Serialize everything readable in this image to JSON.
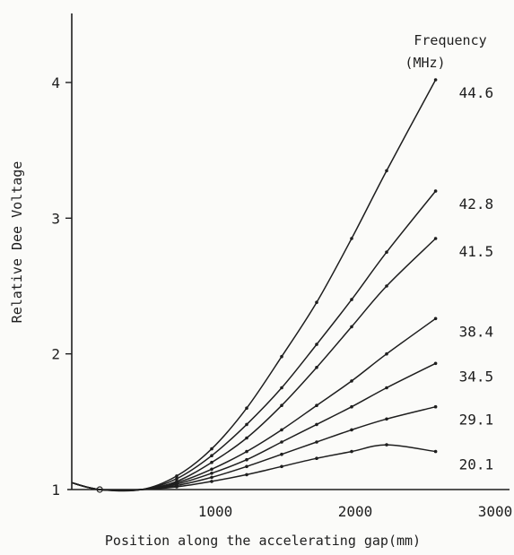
{
  "chart_data": {
    "type": "line",
    "title": "",
    "xlabel": "Position along the accelerating gap(mm)",
    "ylabel": "Relative Dee Voltage",
    "legend_title": [
      "Frequency",
      "(MHz)"
    ],
    "xlim": [
      0,
      3000
    ],
    "ylim": [
      1,
      4.5
    ],
    "xticks": [
      1000,
      2000,
      3000
    ],
    "yticks": [
      1,
      2,
      3,
      4
    ],
    "grid": false,
    "legend": "right",
    "series": [
      {
        "name": "44.6",
        "x": [
          0,
          200,
          500,
          750,
          1000,
          1250,
          1500,
          1750,
          2000,
          2250,
          2600
        ],
        "y": [
          1.05,
          1.0,
          1.0,
          1.1,
          1.3,
          1.6,
          1.98,
          2.38,
          2.85,
          3.35,
          4.02
        ]
      },
      {
        "name": "42.8",
        "x": [
          0,
          200,
          500,
          750,
          1000,
          1250,
          1500,
          1750,
          2000,
          2250,
          2600
        ],
        "y": [
          1.05,
          1.0,
          1.0,
          1.08,
          1.25,
          1.48,
          1.75,
          2.07,
          2.4,
          2.75,
          3.2
        ]
      },
      {
        "name": "41.5",
        "x": [
          0,
          200,
          500,
          750,
          1000,
          1250,
          1500,
          1750,
          2000,
          2250,
          2600
        ],
        "y": [
          1.05,
          1.0,
          1.0,
          1.06,
          1.2,
          1.38,
          1.62,
          1.9,
          2.2,
          2.5,
          2.85
        ]
      },
      {
        "name": "38.4",
        "x": [
          0,
          200,
          500,
          750,
          1000,
          1250,
          1500,
          1750,
          2000,
          2250,
          2600
        ],
        "y": [
          1.05,
          1.0,
          1.0,
          1.05,
          1.15,
          1.28,
          1.44,
          1.62,
          1.8,
          2.0,
          2.26
        ]
      },
      {
        "name": "34.5",
        "x": [
          0,
          200,
          500,
          750,
          1000,
          1250,
          1500,
          1750,
          2000,
          2250,
          2600
        ],
        "y": [
          1.05,
          1.0,
          1.0,
          1.04,
          1.12,
          1.22,
          1.35,
          1.48,
          1.61,
          1.75,
          1.93
        ]
      },
      {
        "name": "29.1",
        "x": [
          0,
          200,
          500,
          750,
          1000,
          1250,
          1500,
          1750,
          2000,
          2250,
          2600
        ],
        "y": [
          1.05,
          1.0,
          1.0,
          1.03,
          1.09,
          1.17,
          1.26,
          1.35,
          1.44,
          1.52,
          1.61
        ]
      },
      {
        "name": "20.1",
        "x": [
          0,
          200,
          500,
          750,
          1000,
          1250,
          1500,
          1750,
          2000,
          2250,
          2600
        ],
        "y": [
          1.05,
          1.0,
          1.0,
          1.02,
          1.06,
          1.11,
          1.17,
          1.23,
          1.28,
          1.33,
          1.28
        ]
      }
    ]
  }
}
